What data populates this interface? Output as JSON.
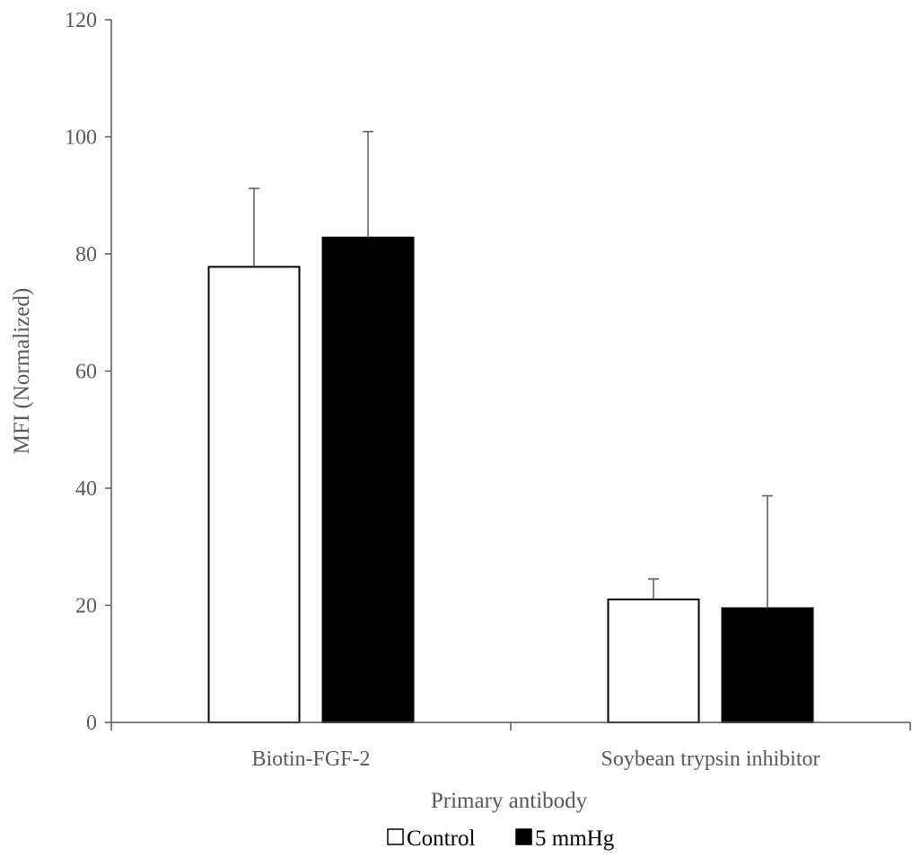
{
  "chart_data": {
    "type": "bar",
    "title": "",
    "xlabel": "Primary antibody",
    "ylabel": "MFI (Normalized)",
    "ylim": [
      0,
      120
    ],
    "yticks": [
      "0",
      "20",
      "40",
      "60",
      "80",
      "100",
      "120"
    ],
    "categories": [
      "Biotin-FGF-2",
      "Soybean trypsin inhibitor"
    ],
    "series": [
      {
        "name": "Control",
        "values": [
          77.8,
          21.0
        ],
        "error": [
          13.4,
          3.5
        ],
        "color": "#ffffff"
      },
      {
        "name": "5 mmHg",
        "values": [
          82.8,
          19.5
        ],
        "error": [
          18.1,
          19.2
        ],
        "color": "#000000"
      }
    ],
    "grid": false,
    "legend": "bottom-center",
    "error_bars": true
  }
}
